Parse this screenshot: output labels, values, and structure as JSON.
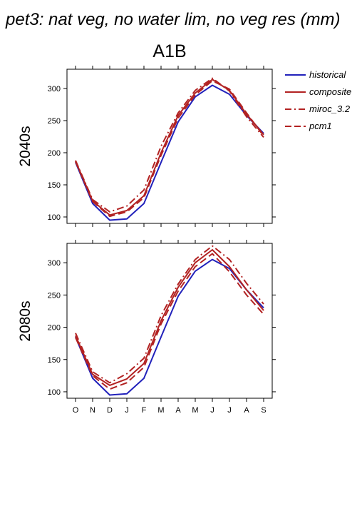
{
  "figure_title": "pet3: nat veg, no water lim, no veg res (mm)",
  "scenario": "A1B",
  "colors": {
    "historical": "#2222bb",
    "model": "#b22222",
    "frame": "#000000"
  },
  "legend": {
    "placement": "right",
    "entries": [
      {
        "label": "historical",
        "color": "#2222bb",
        "dash": "solid"
      },
      {
        "label": "composite",
        "color": "#b22222",
        "dash": "solid"
      },
      {
        "label": "miroc_3.2",
        "color": "#b22222",
        "dash": "dashdot"
      },
      {
        "label": "pcm1",
        "color": "#b22222",
        "dash": "dashed"
      }
    ]
  },
  "chart_data": [
    {
      "type": "line",
      "title": "",
      "ylabel": "2040s",
      "xlabel": "",
      "categories": [
        "O",
        "N",
        "D",
        "J",
        "F",
        "M",
        "A",
        "M",
        "J",
        "J",
        "A",
        "S"
      ],
      "ylim": [
        90,
        330
      ],
      "yticks": [
        100,
        150,
        200,
        250,
        300
      ],
      "grid": false,
      "series": [
        {
          "name": "historical",
          "style": "solid",
          "color": "#2222bb",
          "values": [
            185,
            121,
            95,
            97,
            121,
            185,
            248,
            287,
            305,
            291,
            258,
            230
          ]
        },
        {
          "name": "composite",
          "style": "solid",
          "color": "#b22222",
          "values": [
            187,
            125,
            103,
            110,
            133,
            200,
            258,
            293,
            314,
            297,
            260,
            228
          ]
        },
        {
          "name": "miroc_3.2",
          "style": "dashdot",
          "color": "#b22222",
          "values": [
            188,
            127,
            108,
            117,
            142,
            210,
            262,
            297,
            316,
            296,
            256,
            224
          ]
        },
        {
          "name": "pcm1",
          "style": "dashed",
          "color": "#b22222",
          "values": [
            186,
            124,
            101,
            108,
            130,
            196,
            254,
            290,
            312,
            299,
            262,
            226
          ]
        }
      ]
    },
    {
      "type": "line",
      "title": "",
      "ylabel": "2080s",
      "xlabel": "",
      "categories": [
        "O",
        "N",
        "D",
        "J",
        "F",
        "M",
        "A",
        "M",
        "J",
        "J",
        "A",
        "S"
      ],
      "ylim": [
        90,
        330
      ],
      "yticks": [
        100,
        150,
        200,
        250,
        300
      ],
      "grid": false,
      "series": [
        {
          "name": "historical",
          "style": "solid",
          "color": "#2222bb",
          "values": [
            185,
            121,
            95,
            97,
            121,
            185,
            248,
            287,
            305,
            291,
            258,
            230
          ]
        },
        {
          "name": "composite",
          "style": "solid",
          "color": "#b22222",
          "values": [
            187,
            127,
            110,
            120,
            144,
            210,
            262,
            300,
            320,
            294,
            258,
            226
          ]
        },
        {
          "name": "miroc_3.2",
          "style": "dashdot",
          "color": "#b22222",
          "values": [
            191,
            131,
            114,
            128,
            152,
            218,
            267,
            305,
            326,
            305,
            268,
            236
          ]
        },
        {
          "name": "pcm1",
          "style": "dashed",
          "color": "#b22222",
          "values": [
            184,
            125,
            104,
            114,
            138,
            205,
            256,
            294,
            314,
            286,
            250,
            220
          ]
        }
      ]
    }
  ]
}
